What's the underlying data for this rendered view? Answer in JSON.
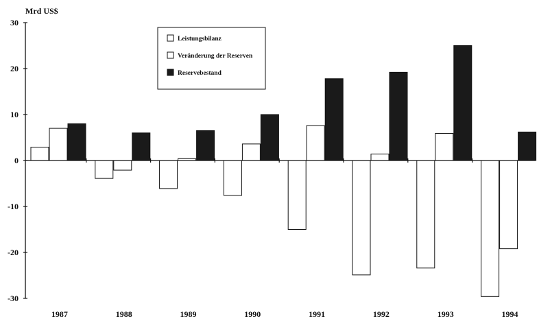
{
  "chart_data": {
    "type": "bar",
    "ylabel": "Mrd US$",
    "ylim": [
      -30,
      30
    ],
    "yticks": [
      "30",
      "20",
      "10",
      "0",
      "-10",
      "-20",
      "-30"
    ],
    "categories": [
      "1987",
      "1988",
      "1989",
      "1990",
      "1991",
      "1992",
      "1993",
      "1994"
    ],
    "series": [
      {
        "name": "Leistungsbilanz",
        "fill": "#ffffff",
        "values": [
          2.9,
          -3.9,
          -6.1,
          -7.6,
          -15.0,
          -24.9,
          -23.4,
          -29.6
        ]
      },
      {
        "name": "Veränderung der Reserven",
        "fill": "#ffffff",
        "values": [
          7.0,
          -2.1,
          0.4,
          3.6,
          7.6,
          1.4,
          5.9,
          -19.2
        ]
      },
      {
        "name": "Reservebestand",
        "fill": "#1a1a1a",
        "values": [
          8.0,
          6.0,
          6.5,
          10.0,
          17.8,
          19.2,
          25.0,
          6.2
        ]
      }
    ],
    "legend_position": "top-left, inside plot",
    "grid": false
  }
}
